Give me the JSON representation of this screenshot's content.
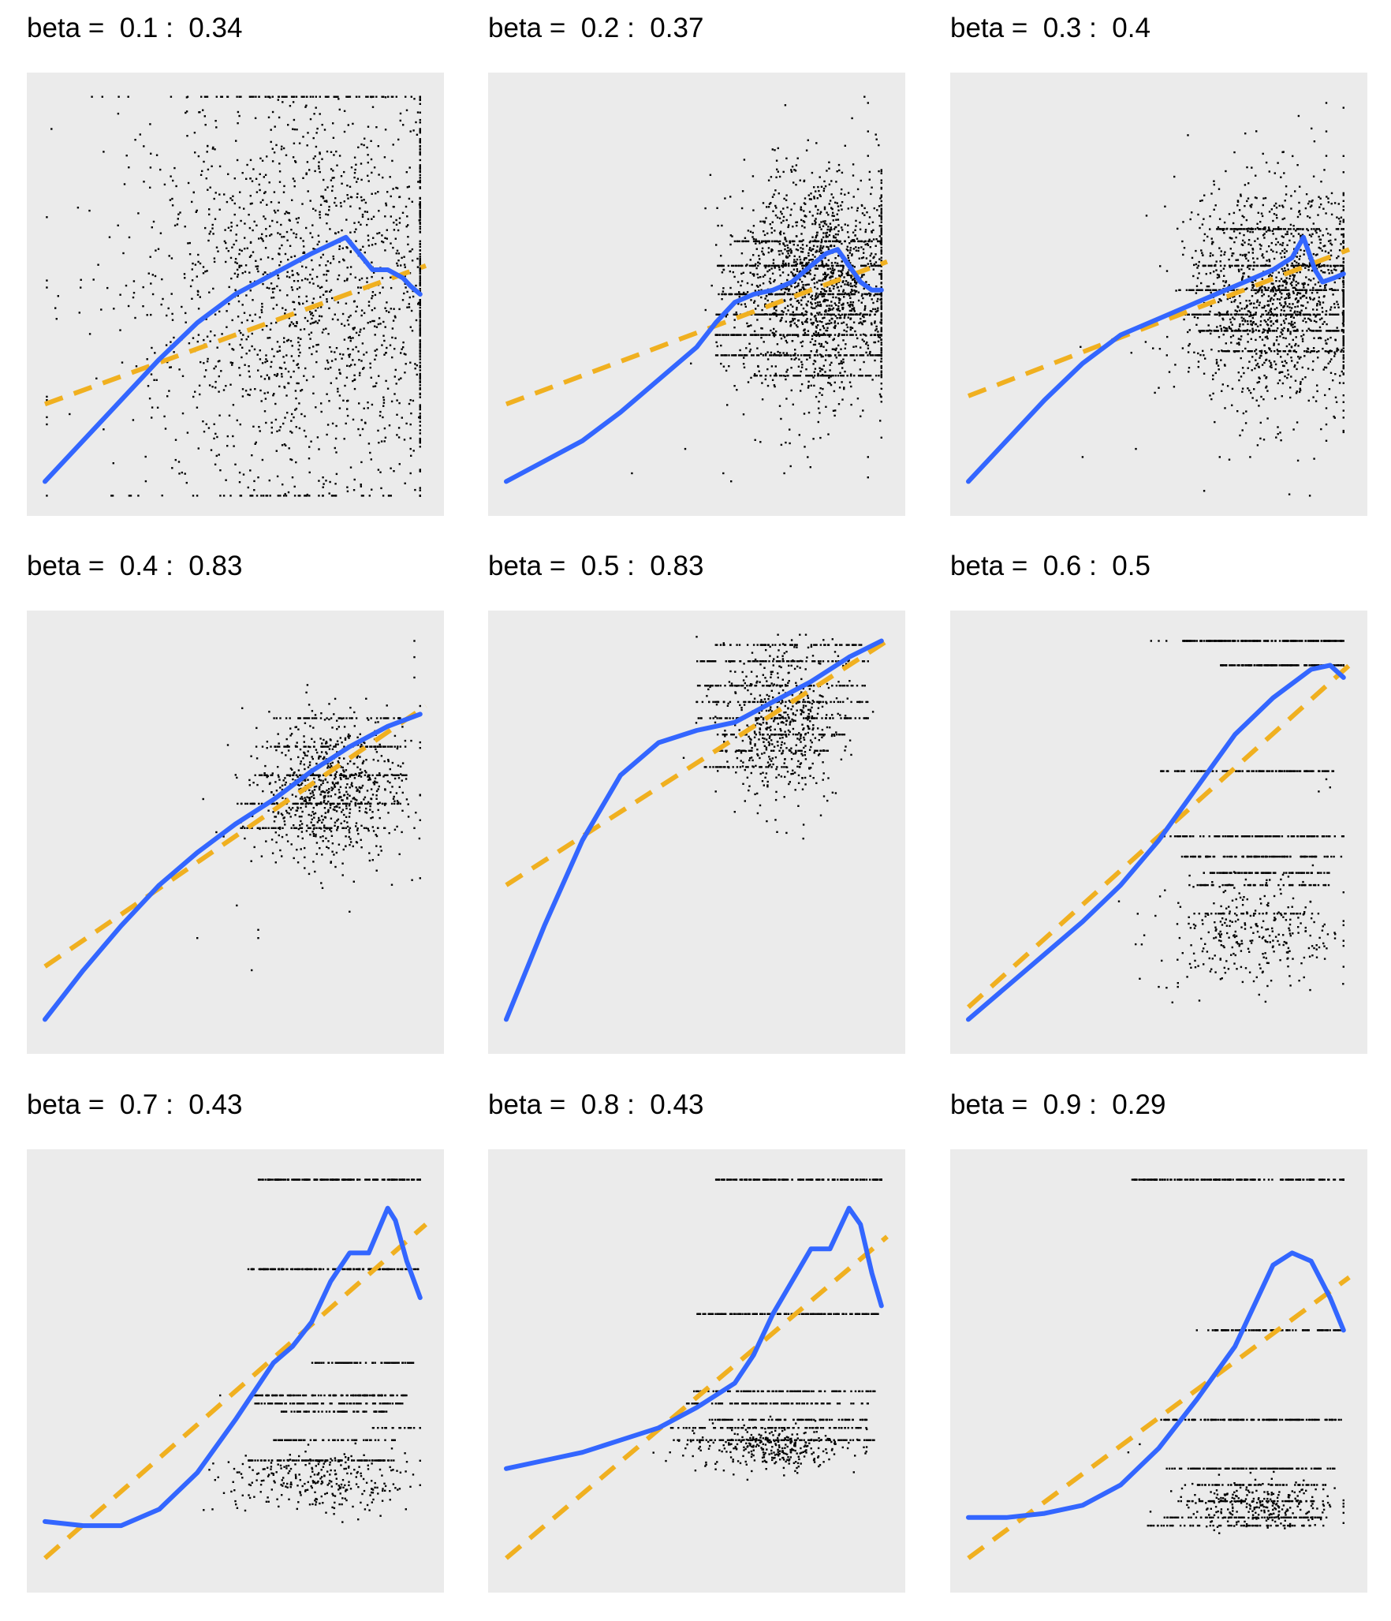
{
  "colors": {
    "panel_bg": "#EBEBEB",
    "points": "#000000",
    "smooth": "#3366FF",
    "fit": "#F0B020"
  },
  "chart_data": [
    {
      "type": "scatter",
      "title": "beta =  0.1 :  0.34",
      "xlim": [
        0,
        1
      ],
      "ylim": [
        0,
        1
      ],
      "grid": false,
      "legend": "none",
      "cloud": [
        [
          0.7,
          0.52,
          0.25,
          0.28,
          1800
        ]
      ],
      "bands": [],
      "extras": [
        [
          0.94,
          0.7
        ],
        [
          0.95,
          0.8
        ],
        [
          0.96,
          0.9
        ],
        [
          0.97,
          0.98
        ],
        [
          0.56,
          0.05
        ],
        [
          0.65,
          0.05
        ],
        [
          0.73,
          0.05
        ],
        [
          0.96,
          0.06
        ],
        [
          0.96,
          0.12
        ],
        [
          0.96,
          0.18
        ],
        [
          0.96,
          0.24
        ]
      ],
      "smooth": [
        [
          0.0,
          0.04
        ],
        [
          0.1,
          0.14
        ],
        [
          0.2,
          0.24
        ],
        [
          0.3,
          0.34
        ],
        [
          0.4,
          0.43
        ],
        [
          0.5,
          0.5
        ],
        [
          0.6,
          0.55
        ],
        [
          0.7,
          0.6
        ],
        [
          0.79,
          0.64
        ],
        [
          0.86,
          0.56
        ],
        [
          0.9,
          0.56
        ],
        [
          0.94,
          0.54
        ],
        [
          0.96,
          0.52
        ],
        [
          0.985,
          0.5
        ]
      ],
      "fit": [
        [
          0.0,
          0.23
        ],
        [
          1.0,
          0.57
        ]
      ]
    },
    {
      "type": "scatter",
      "title": "beta =  0.2 :  0.37",
      "xlim": [
        0,
        1
      ],
      "ylim": [
        0,
        1
      ],
      "grid": false,
      "legend": "none",
      "cloud": [
        [
          0.82,
          0.53,
          0.12,
          0.14,
          1500
        ]
      ],
      "bands": [
        [
          0.55,
          1.0,
          0.57,
          120
        ],
        [
          0.55,
          1.0,
          0.5,
          110
        ],
        [
          0.55,
          1.0,
          0.45,
          110
        ],
        [
          0.55,
          1.0,
          0.4,
          110
        ],
        [
          0.55,
          1.0,
          0.35,
          100
        ],
        [
          0.6,
          1.0,
          0.63,
          90
        ],
        [
          0.65,
          1.0,
          0.3,
          80
        ]
      ],
      "extras": [
        [
          0.95,
          0.97
        ],
        [
          0.95,
          0.9
        ],
        [
          0.95,
          0.84
        ],
        [
          0.95,
          0.1
        ],
        [
          0.95,
          0.05
        ],
        [
          0.93,
          0.2
        ],
        [
          0.57,
          0.06
        ],
        [
          0.47,
          0.12
        ],
        [
          0.33,
          0.06
        ],
        [
          0.73,
          0.06
        ]
      ],
      "smooth": [
        [
          0.0,
          0.04
        ],
        [
          0.1,
          0.09
        ],
        [
          0.2,
          0.14
        ],
        [
          0.3,
          0.21
        ],
        [
          0.4,
          0.29
        ],
        [
          0.5,
          0.37
        ],
        [
          0.55,
          0.43
        ],
        [
          0.6,
          0.48
        ],
        [
          0.65,
          0.5
        ],
        [
          0.7,
          0.51
        ],
        [
          0.75,
          0.53
        ],
        [
          0.8,
          0.57
        ],
        [
          0.84,
          0.6
        ],
        [
          0.87,
          0.61
        ],
        [
          0.9,
          0.57
        ],
        [
          0.93,
          0.53
        ],
        [
          0.96,
          0.51
        ],
        [
          0.985,
          0.51
        ]
      ],
      "fit": [
        [
          0.0,
          0.23
        ],
        [
          1.0,
          0.58
        ]
      ]
    },
    {
      "type": "scatter",
      "title": "beta =  0.3 :  0.4",
      "xlim": [
        0,
        1
      ],
      "ylim": [
        0,
        1
      ],
      "grid": false,
      "legend": "none",
      "cloud": [
        [
          0.82,
          0.5,
          0.13,
          0.14,
          1300
        ]
      ],
      "bands": [
        [
          0.55,
          1.0,
          0.51,
          130
        ],
        [
          0.55,
          1.0,
          0.45,
          120
        ],
        [
          0.6,
          1.0,
          0.57,
          100
        ],
        [
          0.6,
          1.0,
          0.41,
          90
        ],
        [
          0.65,
          1.0,
          0.66,
          70
        ],
        [
          0.65,
          1.0,
          0.36,
          60
        ]
      ],
      "extras": [
        [
          0.94,
          0.97
        ],
        [
          0.94,
          0.9
        ],
        [
          0.94,
          0.84
        ],
        [
          0.94,
          0.22
        ],
        [
          0.94,
          0.18
        ],
        [
          0.94,
          0.14
        ],
        [
          0.5,
          0.27
        ],
        [
          0.44,
          0.12
        ],
        [
          0.3,
          0.1
        ],
        [
          0.66,
          0.1
        ],
        [
          0.74,
          0.1
        ]
      ],
      "smooth": [
        [
          0.0,
          0.04
        ],
        [
          0.1,
          0.14
        ],
        [
          0.2,
          0.24
        ],
        [
          0.3,
          0.33
        ],
        [
          0.4,
          0.4
        ],
        [
          0.5,
          0.44
        ],
        [
          0.6,
          0.48
        ],
        [
          0.7,
          0.52
        ],
        [
          0.8,
          0.56
        ],
        [
          0.85,
          0.59
        ],
        [
          0.88,
          0.64
        ],
        [
          0.91,
          0.56
        ],
        [
          0.93,
          0.53
        ],
        [
          0.96,
          0.54
        ],
        [
          0.985,
          0.55
        ]
      ],
      "fit": [
        [
          0.0,
          0.25
        ],
        [
          1.0,
          0.61
        ]
      ]
    },
    {
      "type": "scatter",
      "title": "beta =  0.4 :  0.83",
      "xlim": [
        0,
        1
      ],
      "ylim": [
        0,
        1
      ],
      "grid": false,
      "legend": "none",
      "cloud": [
        [
          0.75,
          0.6,
          0.1,
          0.09,
          700
        ]
      ],
      "bands": [
        [
          0.55,
          0.95,
          0.64,
          70
        ],
        [
          0.5,
          0.95,
          0.57,
          80
        ],
        [
          0.55,
          0.95,
          0.71,
          60
        ],
        [
          0.6,
          0.95,
          0.78,
          40
        ],
        [
          0.5,
          0.9,
          0.51,
          50
        ]
      ],
      "extras": [
        [
          0.97,
          0.97
        ],
        [
          0.97,
          0.93
        ],
        [
          0.97,
          0.88
        ],
        [
          0.97,
          0.51
        ],
        [
          0.4,
          0.24
        ],
        [
          0.56,
          0.24
        ],
        [
          0.56,
          0.26
        ],
        [
          0.45,
          0.5
        ]
      ],
      "smooth": [
        [
          0.0,
          0.04
        ],
        [
          0.1,
          0.16
        ],
        [
          0.2,
          0.27
        ],
        [
          0.3,
          0.37
        ],
        [
          0.4,
          0.45
        ],
        [
          0.5,
          0.52
        ],
        [
          0.6,
          0.58
        ],
        [
          0.7,
          0.65
        ],
        [
          0.8,
          0.71
        ],
        [
          0.9,
          0.76
        ],
        [
          0.985,
          0.79
        ]
      ],
      "fit": [
        [
          0.0,
          0.17
        ],
        [
          1.0,
          0.81
        ]
      ]
    },
    {
      "type": "scatter",
      "title": "beta =  0.5 :  0.83",
      "xlim": [
        0,
        1
      ],
      "ylim": [
        0,
        1
      ],
      "grid": false,
      "legend": "none",
      "cloud": [
        [
          0.72,
          0.77,
          0.08,
          0.1,
          500
        ]
      ],
      "bands": [
        [
          0.5,
          0.95,
          0.92,
          80
        ],
        [
          0.5,
          0.95,
          0.86,
          80
        ],
        [
          0.5,
          0.95,
          0.82,
          70
        ],
        [
          0.5,
          0.95,
          0.78,
          70
        ],
        [
          0.55,
          0.95,
          0.96,
          60
        ],
        [
          0.55,
          0.9,
          0.74,
          50
        ],
        [
          0.55,
          0.85,
          0.7,
          40
        ],
        [
          0.5,
          0.8,
          0.66,
          30
        ]
      ],
      "extras": [
        [
          0.5,
          0.98
        ],
        [
          0.55,
          0.6
        ],
        [
          0.6,
          0.55
        ]
      ],
      "smooth": [
        [
          0.0,
          0.04
        ],
        [
          0.1,
          0.27
        ],
        [
          0.2,
          0.48
        ],
        [
          0.3,
          0.64
        ],
        [
          0.4,
          0.72
        ],
        [
          0.5,
          0.75
        ],
        [
          0.6,
          0.77
        ],
        [
          0.7,
          0.82
        ],
        [
          0.8,
          0.87
        ],
        [
          0.9,
          0.93
        ],
        [
          0.985,
          0.97
        ]
      ],
      "fit": [
        [
          0.0,
          0.37
        ],
        [
          1.0,
          0.97
        ]
      ]
    },
    {
      "type": "scatter",
      "title": "beta =  0.6 :  0.5",
      "xlim": [
        0,
        1
      ],
      "ylim": [
        0,
        1
      ],
      "grid": false,
      "legend": "none",
      "cloud": [
        [
          0.75,
          0.25,
          0.12,
          0.07,
          300
        ]
      ],
      "bands": [
        [
          0.56,
          1.0,
          0.97,
          200
        ],
        [
          0.66,
          1.0,
          0.91,
          150
        ],
        [
          0.5,
          0.97,
          0.65,
          110
        ],
        [
          0.48,
          1.0,
          0.49,
          110
        ],
        [
          0.55,
          0.98,
          0.44,
          100
        ],
        [
          0.61,
          0.95,
          0.4,
          80
        ],
        [
          0.58,
          0.95,
          0.37,
          60
        ],
        [
          0.58,
          0.92,
          0.3,
          40
        ]
      ],
      "extras": [
        [
          0.48,
          0.97
        ],
        [
          0.5,
          0.97
        ],
        [
          0.52,
          0.97
        ],
        [
          0.92,
          0.6
        ],
        [
          0.94,
          0.63
        ],
        [
          0.95,
          0.61
        ],
        [
          0.45,
          0.14
        ],
        [
          0.5,
          0.12
        ],
        [
          0.55,
          0.12
        ]
      ],
      "smooth": [
        [
          0.0,
          0.04
        ],
        [
          0.1,
          0.12
        ],
        [
          0.2,
          0.2
        ],
        [
          0.3,
          0.28
        ],
        [
          0.4,
          0.37
        ],
        [
          0.5,
          0.48
        ],
        [
          0.6,
          0.61
        ],
        [
          0.7,
          0.74
        ],
        [
          0.8,
          0.83
        ],
        [
          0.9,
          0.9
        ],
        [
          0.95,
          0.91
        ],
        [
          0.985,
          0.88
        ]
      ],
      "fit": [
        [
          0.0,
          0.07
        ],
        [
          1.0,
          0.91
        ]
      ]
    },
    {
      "type": "scatter",
      "title": "beta =  0.7 :  0.43",
      "xlim": [
        0,
        1
      ],
      "ylim": [
        0,
        1
      ],
      "grid": false,
      "legend": "none",
      "cloud": [
        [
          0.72,
          0.23,
          0.12,
          0.04,
          280
        ]
      ],
      "bands": [
        [
          0.56,
          1.0,
          0.97,
          160
        ],
        [
          0.53,
          0.98,
          0.75,
          150
        ],
        [
          0.7,
          0.98,
          0.52,
          80
        ],
        [
          0.55,
          0.95,
          0.44,
          110
        ],
        [
          0.55,
          0.95,
          0.42,
          90
        ],
        [
          0.62,
          0.9,
          0.4,
          60
        ],
        [
          0.86,
          1.0,
          0.36,
          20
        ],
        [
          0.6,
          0.92,
          0.33,
          70
        ],
        [
          0.53,
          0.93,
          0.28,
          100
        ]
      ],
      "extras": [
        [
          0.44,
          0.16
        ],
        [
          0.47,
          0.2
        ],
        [
          0.5,
          0.18
        ],
        [
          0.46,
          0.44
        ]
      ],
      "smooth": [
        [
          0.0,
          0.13
        ],
        [
          0.1,
          0.12
        ],
        [
          0.2,
          0.12
        ],
        [
          0.3,
          0.16
        ],
        [
          0.4,
          0.25
        ],
        [
          0.5,
          0.38
        ],
        [
          0.6,
          0.52
        ],
        [
          0.65,
          0.56
        ],
        [
          0.7,
          0.62
        ],
        [
          0.75,
          0.72
        ],
        [
          0.8,
          0.79
        ],
        [
          0.85,
          0.79
        ],
        [
          0.9,
          0.9
        ],
        [
          0.92,
          0.87
        ],
        [
          0.95,
          0.77
        ],
        [
          0.985,
          0.68
        ]
      ],
      "fit": [
        [
          0.0,
          0.04
        ],
        [
          1.0,
          0.86
        ]
      ]
    },
    {
      "type": "scatter",
      "title": "beta =  0.8 :  0.43",
      "xlim": [
        0,
        1
      ],
      "ylim": [
        0,
        1
      ],
      "grid": false,
      "legend": "none",
      "cloud": [
        [
          0.7,
          0.31,
          0.1,
          0.025,
          300
        ]
      ],
      "bands": [
        [
          0.55,
          1.0,
          0.97,
          150
        ],
        [
          0.5,
          0.98,
          0.64,
          140
        ],
        [
          0.49,
          0.98,
          0.45,
          110
        ],
        [
          0.47,
          0.95,
          0.42,
          90
        ],
        [
          0.5,
          0.95,
          0.38,
          90
        ],
        [
          0.42,
          0.95,
          0.36,
          80
        ],
        [
          0.45,
          0.97,
          0.33,
          100
        ]
      ],
      "extras": [
        [
          0.43,
          0.3
        ],
        [
          0.44,
          0.33
        ]
      ],
      "smooth": [
        [
          0.0,
          0.26
        ],
        [
          0.1,
          0.28
        ],
        [
          0.2,
          0.3
        ],
        [
          0.3,
          0.33
        ],
        [
          0.4,
          0.36
        ],
        [
          0.5,
          0.41
        ],
        [
          0.6,
          0.47
        ],
        [
          0.65,
          0.54
        ],
        [
          0.7,
          0.64
        ],
        [
          0.75,
          0.72
        ],
        [
          0.8,
          0.8
        ],
        [
          0.85,
          0.8
        ],
        [
          0.9,
          0.9
        ],
        [
          0.93,
          0.86
        ],
        [
          0.96,
          0.74
        ],
        [
          0.985,
          0.66
        ]
      ],
      "fit": [
        [
          0.0,
          0.04
        ],
        [
          1.0,
          0.83
        ]
      ]
    },
    {
      "type": "scatter",
      "title": "beta =  0.9 :  0.29",
      "xlim": [
        0,
        1
      ],
      "ylim": [
        0,
        1
      ],
      "grid": false,
      "legend": "none",
      "cloud": [
        [
          0.77,
          0.17,
          0.1,
          0.03,
          250
        ]
      ],
      "bands": [
        [
          0.43,
          1.0,
          0.97,
          180
        ],
        [
          0.64,
          1.0,
          0.6,
          100
        ],
        [
          0.5,
          0.98,
          0.38,
          150
        ],
        [
          0.52,
          0.97,
          0.26,
          120
        ],
        [
          0.6,
          0.95,
          0.22,
          60
        ],
        [
          0.55,
          0.95,
          0.18,
          70
        ],
        [
          0.5,
          0.95,
          0.14,
          80
        ],
        [
          0.47,
          0.9,
          0.12,
          60
        ]
      ],
      "extras": [
        [
          0.63,
          0.6
        ],
        [
          0.65,
          0.6
        ],
        [
          0.6,
          0.6
        ],
        [
          0.45,
          0.32
        ],
        [
          0.42,
          0.3
        ]
      ],
      "smooth": [
        [
          0.0,
          0.14
        ],
        [
          0.1,
          0.14
        ],
        [
          0.2,
          0.15
        ],
        [
          0.3,
          0.17
        ],
        [
          0.4,
          0.22
        ],
        [
          0.5,
          0.31
        ],
        [
          0.6,
          0.43
        ],
        [
          0.7,
          0.56
        ],
        [
          0.75,
          0.66
        ],
        [
          0.8,
          0.76
        ],
        [
          0.85,
          0.79
        ],
        [
          0.9,
          0.77
        ],
        [
          0.95,
          0.68
        ],
        [
          0.985,
          0.6
        ]
      ],
      "fit": [
        [
          0.0,
          0.04
        ],
        [
          1.0,
          0.73
        ]
      ]
    }
  ]
}
